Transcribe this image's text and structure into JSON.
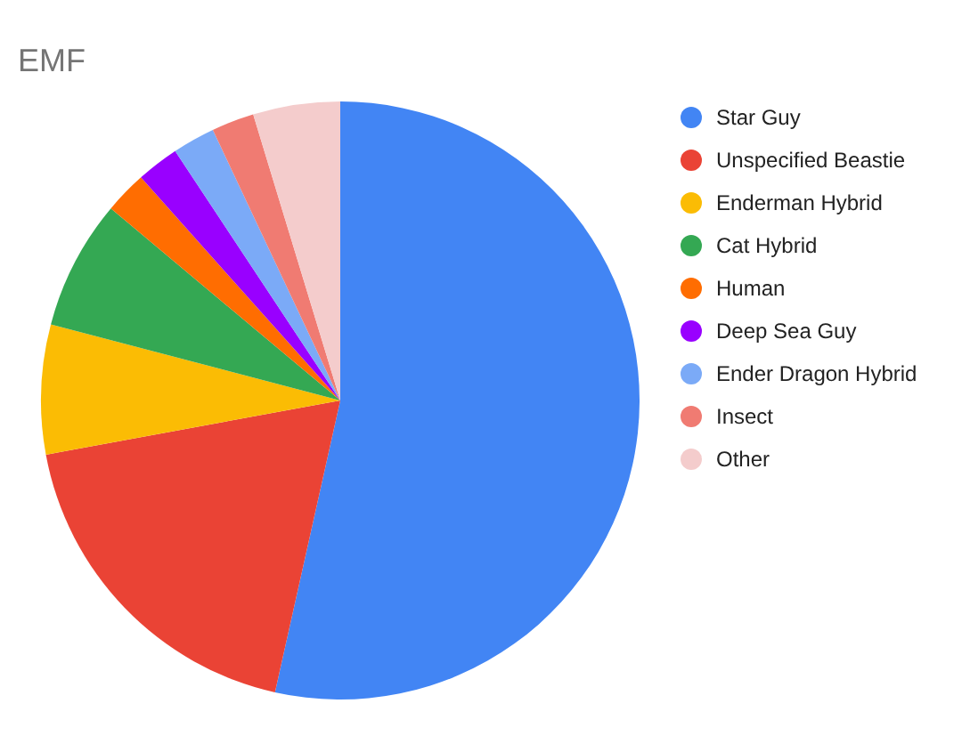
{
  "chart_data": {
    "type": "pie",
    "title": "EMF",
    "categories": [
      "Star Guy",
      "Unspecified Beastie",
      "Enderman Hybrid",
      "Cat Hybrid",
      "Human",
      "Deep Sea Guy",
      "Ender Dragon Hybrid",
      "Insect",
      "Other"
    ],
    "values": [
      53.5,
      18.6,
      7.0,
      7.0,
      2.3,
      2.3,
      2.3,
      2.3,
      4.7
    ],
    "colors": [
      "#4285f4",
      "#ea4335",
      "#fbbc04",
      "#34a853",
      "#ff6d01",
      "#9900ff",
      "#7baaf7",
      "#f07b72",
      "#f4cccc"
    ],
    "legend": "right"
  }
}
